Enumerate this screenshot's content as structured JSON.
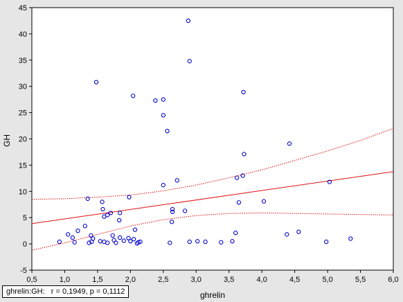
{
  "chart_data": {
    "type": "scatter",
    "title": "",
    "xlabel": "ghrelin",
    "ylabel": "GH",
    "xlim": [
      0.5,
      6.0
    ],
    "ylim": [
      -5,
      45
    ],
    "x_ticks": [
      "0,5",
      "1,0",
      "1,5",
      "2,0",
      "2,5",
      "3,0",
      "3,5",
      "4,0",
      "4,5",
      "5,0",
      "5,5",
      "6,0"
    ],
    "y_ticks": [
      "-5",
      "0",
      "5",
      "10",
      "15",
      "20",
      "25",
      "30",
      "35",
      "40",
      "45"
    ],
    "grid": false,
    "points": [
      {
        "x": 0.92,
        "y": 0.4
      },
      {
        "x": 1.05,
        "y": 1.8
      },
      {
        "x": 1.12,
        "y": 1.2
      },
      {
        "x": 1.15,
        "y": 0.3
      },
      {
        "x": 1.2,
        "y": 2.5
      },
      {
        "x": 1.31,
        "y": 3.4
      },
      {
        "x": 1.35,
        "y": 8.6
      },
      {
        "x": 1.37,
        "y": 0.2
      },
      {
        "x": 1.4,
        "y": 1.6
      },
      {
        "x": 1.41,
        "y": 0.4
      },
      {
        "x": 1.43,
        "y": 1.0
      },
      {
        "x": 1.48,
        "y": 30.8
      },
      {
        "x": 1.54,
        "y": 0.5
      },
      {
        "x": 1.57,
        "y": 8.0
      },
      {
        "x": 1.58,
        "y": 6.6
      },
      {
        "x": 1.6,
        "y": 5.2
      },
      {
        "x": 1.6,
        "y": 0.4
      },
      {
        "x": 1.65,
        "y": 0.2
      },
      {
        "x": 1.65,
        "y": 5.5
      },
      {
        "x": 1.7,
        "y": 5.9
      },
      {
        "x": 1.73,
        "y": 1.6
      },
      {
        "x": 1.75,
        "y": 0.7
      },
      {
        "x": 1.78,
        "y": 0.2
      },
      {
        "x": 1.83,
        "y": 4.5
      },
      {
        "x": 1.84,
        "y": 5.9
      },
      {
        "x": 1.84,
        "y": 1.2
      },
      {
        "x": 1.9,
        "y": 0.6
      },
      {
        "x": 1.97,
        "y": 1.1
      },
      {
        "x": 1.98,
        "y": 8.9
      },
      {
        "x": 2.0,
        "y": 0.5
      },
      {
        "x": 2.04,
        "y": 28.2
      },
      {
        "x": 2.05,
        "y": 0.9
      },
      {
        "x": 2.07,
        "y": 2.7
      },
      {
        "x": 2.1,
        "y": 0.1
      },
      {
        "x": 2.12,
        "y": 0.3
      },
      {
        "x": 2.15,
        "y": 0.4
      },
      {
        "x": 2.38,
        "y": 27.3
      },
      {
        "x": 2.5,
        "y": 27.5
      },
      {
        "x": 2.5,
        "y": 24.5
      },
      {
        "x": 2.5,
        "y": 11.2
      },
      {
        "x": 2.56,
        "y": 21.5
      },
      {
        "x": 2.6,
        "y": 0.2
      },
      {
        "x": 2.63,
        "y": 4.2
      },
      {
        "x": 2.64,
        "y": 6.6
      },
      {
        "x": 2.64,
        "y": 6.1
      },
      {
        "x": 2.71,
        "y": 12.1
      },
      {
        "x": 2.83,
        "y": 6.3
      },
      {
        "x": 2.88,
        "y": 42.5
      },
      {
        "x": 2.9,
        "y": 34.8
      },
      {
        "x": 2.9,
        "y": 0.4
      },
      {
        "x": 3.02,
        "y": 0.5
      },
      {
        "x": 3.14,
        "y": 0.4
      },
      {
        "x": 3.38,
        "y": 0.3
      },
      {
        "x": 3.55,
        "y": 0.5
      },
      {
        "x": 3.6,
        "y": 2.1
      },
      {
        "x": 3.62,
        "y": 12.6
      },
      {
        "x": 3.65,
        "y": 7.9
      },
      {
        "x": 3.71,
        "y": 13.0
      },
      {
        "x": 3.72,
        "y": 28.9
      },
      {
        "x": 3.73,
        "y": 17.1
      },
      {
        "x": 4.03,
        "y": 8.1
      },
      {
        "x": 4.38,
        "y": 1.8
      },
      {
        "x": 4.42,
        "y": 19.1
      },
      {
        "x": 4.56,
        "y": 2.3
      },
      {
        "x": 4.98,
        "y": 0.4
      },
      {
        "x": 5.03,
        "y": 11.8
      },
      {
        "x": 5.35,
        "y": 1.0
      }
    ],
    "regression": {
      "intercept": 2.96,
      "slope": 1.8
    },
    "confidence_band": {
      "x": [
        0.5,
        1.0,
        1.5,
        2.0,
        2.5,
        3.0,
        3.5,
        4.0,
        4.5,
        5.0,
        5.5,
        6.0
      ],
      "upper": [
        8.5,
        8.6,
        8.9,
        9.3,
        10.1,
        11.2,
        12.6,
        14.1,
        15.9,
        17.7,
        19.7,
        22.0
      ],
      "lower": [
        -1.2,
        0.2,
        1.8,
        3.4,
        4.6,
        5.4,
        5.8,
        5.9,
        5.8,
        5.7,
        5.6,
        5.5
      ]
    },
    "colors": {
      "points": "#0000c8",
      "fit_line": "#e01010",
      "band": "#e01010",
      "background": "#ffffff"
    }
  },
  "stat_box": {
    "text": "ghrelin:GH:   r = 0,1949, p = 0,1112"
  }
}
